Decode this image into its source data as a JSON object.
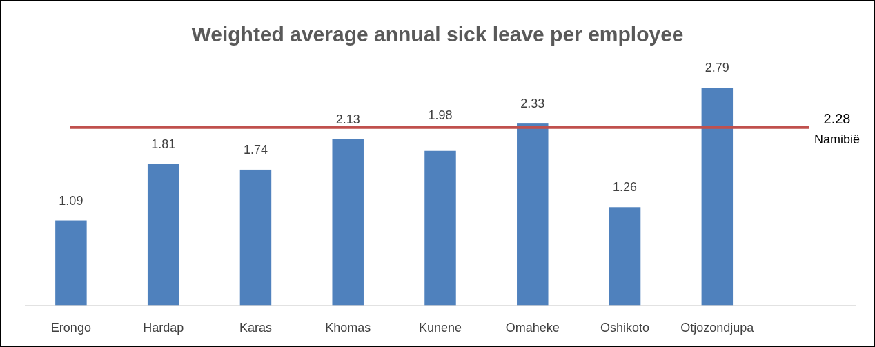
{
  "chart_data": {
    "type": "bar",
    "title": "Weighted average annual sick leave per employee",
    "categories": [
      "Erongo",
      "Hardap",
      "Karas",
      "Khomas",
      "Kunene",
      "Omaheke",
      "Oshikoto",
      "Otjozondjupa"
    ],
    "values": [
      1.09,
      1.81,
      1.74,
      2.13,
      1.98,
      2.33,
      1.26,
      2.79
    ],
    "color": "#4f81bd",
    "data_labels": true,
    "tick_labels": "x",
    "ref_lines": [
      {
        "axis": "y",
        "value": 2.28,
        "label": "2.28 Namibië",
        "color": "#c0504d"
      }
    ]
  }
}
